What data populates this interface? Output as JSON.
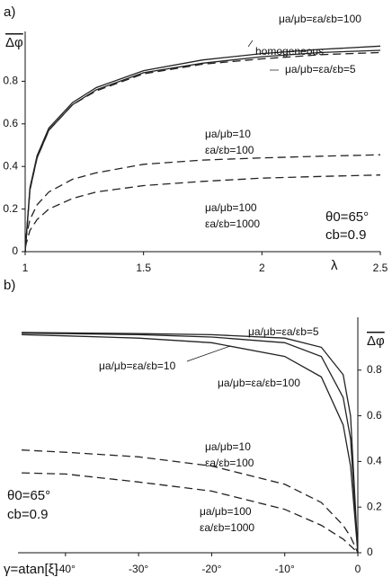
{
  "chart_data": [
    {
      "type": "line",
      "panel": "a)",
      "ylabel": "Δφ",
      "xlabel": "λ",
      "annotations": [
        "θ0=65°",
        "cb=0.9"
      ],
      "x": [
        1,
        1.02,
        1.05,
        1.1,
        1.2,
        1.3,
        1.5,
        1.75,
        2,
        2.25,
        2.5
      ],
      "xlim": [
        1,
        2.5
      ],
      "xticks": [
        1,
        1.5,
        2,
        2.5
      ],
      "ylim": [
        0,
        1.0
      ],
      "yticks": [
        0,
        0.2,
        0.4,
        0.6,
        0.8
      ],
      "series": [
        {
          "label": [
            "μa/μb=εa/εb=100"
          ],
          "color": "#222222",
          "dash": false,
          "values": [
            0,
            0.3,
            0.45,
            0.58,
            0.7,
            0.77,
            0.85,
            0.9,
            0.93,
            0.95,
            0.965
          ]
        },
        {
          "label": [
            "homogeneous"
          ],
          "color": "#222222",
          "dash": false,
          "values": [
            0,
            0.29,
            0.44,
            0.57,
            0.69,
            0.76,
            0.84,
            0.885,
            0.915,
            0.935,
            0.945
          ]
        },
        {
          "label": [
            "μa/μb=εa/εb=5"
          ],
          "color": "#222222",
          "dash": true,
          "values": [
            0,
            0.29,
            0.44,
            0.57,
            0.69,
            0.755,
            0.835,
            0.88,
            0.905,
            0.925,
            0.935
          ]
        },
        {
          "label": [
            "μa/μb=10",
            "εa/εb=100"
          ],
          "color": "#222222",
          "dash": true,
          "values": [
            0.05,
            0.15,
            0.22,
            0.28,
            0.34,
            0.37,
            0.41,
            0.43,
            0.44,
            0.448,
            0.455
          ]
        },
        {
          "label": [
            "μa/μb=100",
            "εa/εb=1000"
          ],
          "color": "#222222",
          "dash": true,
          "values": [
            0.02,
            0.1,
            0.15,
            0.2,
            0.25,
            0.28,
            0.31,
            0.33,
            0.345,
            0.353,
            0.36
          ]
        }
      ]
    },
    {
      "type": "line",
      "panel": "b)",
      "ylabel": "Δφ",
      "xlabel": "γ=atan[ξ]",
      "annotations": [
        "θ0=65°",
        "cb=0.9"
      ],
      "x": [
        -46,
        -40,
        -30,
        -20,
        -10,
        -5,
        -2,
        -1,
        0
      ],
      "xlim": [
        -46.5,
        0
      ],
      "xticks": [
        {
          "value": -40,
          "label": "-40°"
        },
        {
          "value": -30,
          "label": "-30°"
        },
        {
          "value": -20,
          "label": "-20°"
        },
        {
          "value": -10,
          "label": "-10°"
        },
        0
      ],
      "ylim": [
        0,
        1.0
      ],
      "yticks": [
        0,
        0.2,
        0.4,
        0.6,
        0.8
      ],
      "series": [
        {
          "label": [
            "μa/μb=εa/εb=5"
          ],
          "color": "#222222",
          "dash": false,
          "values": [
            0.965,
            0.963,
            0.96,
            0.955,
            0.94,
            0.9,
            0.78,
            0.6,
            0
          ]
        },
        {
          "label": [
            "μa/μb=εa/εb=10"
          ],
          "color": "#222222",
          "dash": false,
          "values": [
            0.962,
            0.96,
            0.955,
            0.945,
            0.92,
            0.86,
            0.68,
            0.5,
            0
          ]
        },
        {
          "label": [
            "μa/μb=εa/εb=100"
          ],
          "color": "#222222",
          "dash": false,
          "values": [
            0.955,
            0.95,
            0.94,
            0.92,
            0.86,
            0.77,
            0.56,
            0.38,
            0
          ]
        },
        {
          "label": [
            "μa/μb=10",
            "εa/εb=100"
          ],
          "color": "#222222",
          "dash": true,
          "values": [
            0.45,
            0.44,
            0.42,
            0.38,
            0.3,
            0.22,
            0.12,
            0.07,
            0
          ]
        },
        {
          "label": [
            "μa/μb=100",
            "εa/εb=1000"
          ],
          "color": "#222222",
          "dash": true,
          "values": [
            0.35,
            0.345,
            0.31,
            0.27,
            0.19,
            0.12,
            0.06,
            0.03,
            0
          ]
        }
      ]
    }
  ]
}
